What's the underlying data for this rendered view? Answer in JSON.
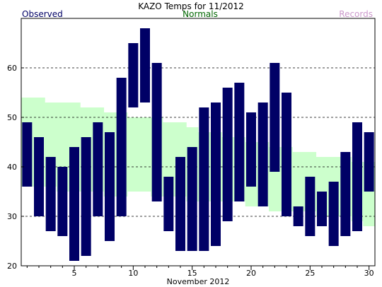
{
  "chart_data": {
    "type": "bar",
    "title": "KAZO Temps for  11/2012",
    "xlabel": "November 2012",
    "ylabel": "",
    "legend": [
      {
        "name": "Observed",
        "color": "#000066"
      },
      {
        "name": "Normals",
        "color": "#006600"
      },
      {
        "name": "Records",
        "color": "#cc99cc"
      }
    ],
    "xlim": [
      1,
      30
    ],
    "ylim": [
      20,
      70
    ],
    "x_ticks": [
      5,
      10,
      15,
      20,
      25,
      30
    ],
    "y_ticks": [
      20,
      30,
      40,
      50,
      60
    ],
    "grid": true,
    "days": [
      1,
      2,
      3,
      4,
      5,
      6,
      7,
      8,
      9,
      10,
      11,
      12,
      13,
      14,
      15,
      16,
      17,
      18,
      19,
      20,
      21,
      22,
      23,
      24,
      25,
      26,
      27,
      28,
      29,
      30
    ],
    "observed_high": [
      49,
      46,
      42,
      40,
      44,
      46,
      49,
      47,
      58,
      65,
      68,
      61,
      38,
      42,
      44,
      52,
      53,
      56,
      57,
      51,
      53,
      61,
      55,
      32,
      38,
      35,
      37,
      43,
      49,
      47
    ],
    "observed_low": [
      36,
      30,
      27,
      26,
      21,
      22,
      30,
      25,
      30,
      52,
      53,
      33,
      27,
      23,
      23,
      23,
      24,
      29,
      33,
      36,
      32,
      39,
      30,
      28,
      26,
      28,
      24,
      26,
      27,
      35
    ],
    "normal_high": [
      54,
      54,
      53,
      53,
      53,
      52,
      52,
      51,
      51,
      50,
      50,
      50,
      49,
      49,
      48,
      47,
      47,
      46,
      46,
      45,
      45,
      44,
      44,
      43,
      43,
      42,
      42,
      42,
      41,
      41
    ],
    "normal_low": [
      36,
      36,
      36,
      35,
      35,
      35,
      35,
      34,
      34,
      35,
      35,
      34,
      34,
      34,
      33,
      33,
      33,
      33,
      33,
      32,
      32,
      31,
      31,
      31,
      31,
      30,
      30,
      30,
      29,
      28
    ],
    "colors": {
      "observed_bar": "#000066",
      "normal_band": "#ccffcc",
      "grid": "#000000",
      "axis": "#000000"
    }
  }
}
